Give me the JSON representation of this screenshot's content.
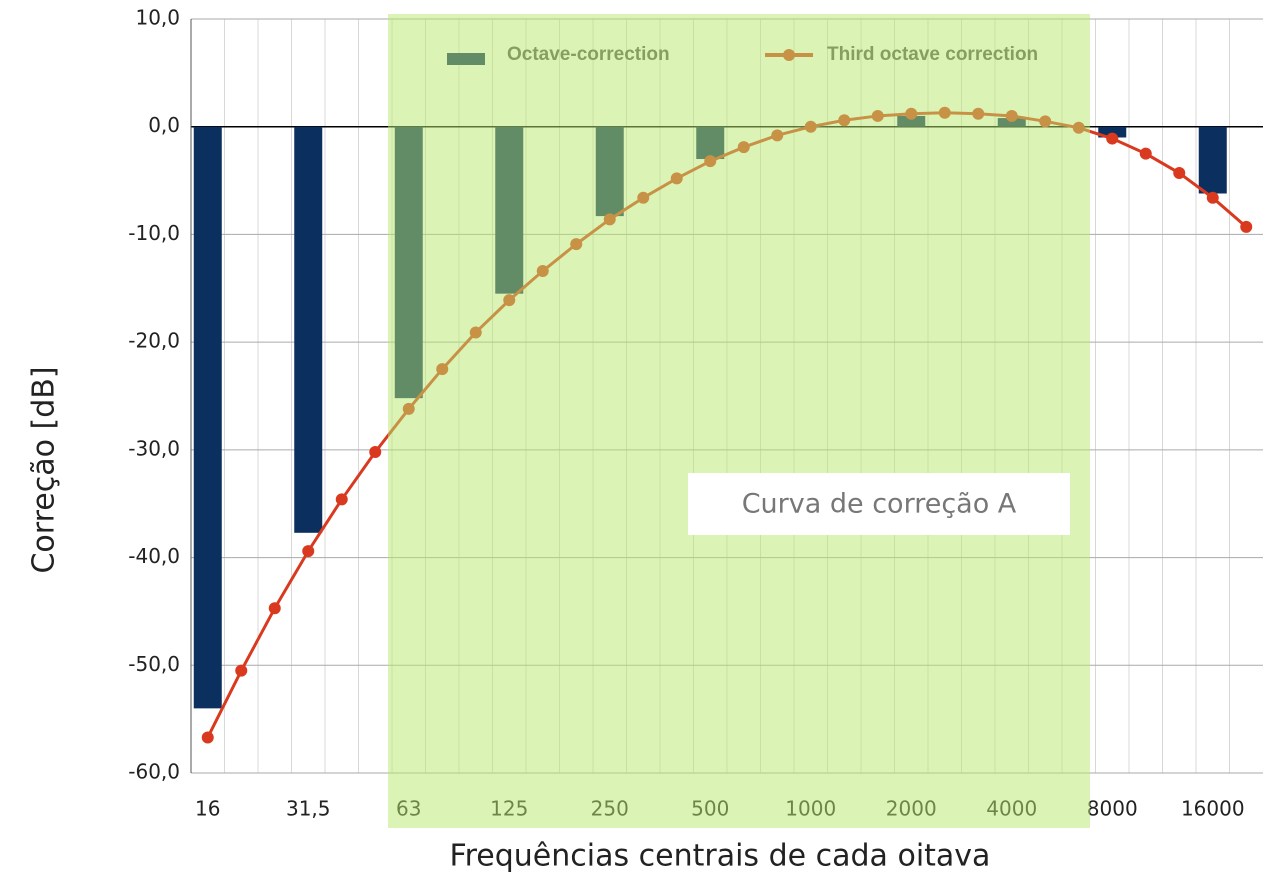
{
  "chart_data": {
    "type": "bar_line",
    "y_axis_label": "Correção [dB]",
    "x_axis_label": "Frequências centrais de cada oitava",
    "annotation": "Curva de correção A",
    "categories": [
      "16",
      null,
      null,
      "31,5",
      null,
      null,
      "63",
      null,
      null,
      "125",
      null,
      null,
      "250",
      null,
      null,
      "500",
      null,
      null,
      "1000",
      null,
      null,
      "2000",
      null,
      null,
      "4000",
      null,
      null,
      "8000",
      null,
      null,
      "16000",
      null
    ],
    "ylim": [
      -60,
      10
    ],
    "yticks": [
      {
        "value": -60,
        "label": "-60,0"
      },
      {
        "value": -50,
        "label": "-50,0"
      },
      {
        "value": -40,
        "label": "-40,0"
      },
      {
        "value": -30,
        "label": "-30,0"
      },
      {
        "value": -20,
        "label": "-20,0"
      },
      {
        "value": -10,
        "label": "-10,0"
      },
      {
        "value": 0,
        "label": "0,0"
      },
      {
        "value": 10,
        "label": "10,0"
      }
    ],
    "grid": true,
    "series": [
      {
        "name": "Octave-correction",
        "kind": "bar",
        "color": "#0b2f5e",
        "values": [
          -54,
          null,
          null,
          -37.7,
          null,
          null,
          -25.2,
          null,
          null,
          -15.5,
          null,
          null,
          -8.3,
          null,
          null,
          -3,
          null,
          null,
          0,
          null,
          null,
          1,
          null,
          null,
          0.8,
          null,
          null,
          -1,
          null,
          null,
          -6.2,
          null
        ]
      },
      {
        "name": "Third octave correction",
        "kind": "line",
        "color": "#d93a1f",
        "values": [
          -56.7,
          -50.5,
          -44.7,
          -39.4,
          -34.6,
          -30.2,
          -26.2,
          -22.5,
          -19.1,
          -16.1,
          -13.4,
          -10.9,
          -8.6,
          -6.6,
          -4.8,
          -3.2,
          -1.9,
          -0.8,
          0,
          0.6,
          1.0,
          1.2,
          1.3,
          1.2,
          1.0,
          0.5,
          -0.1,
          -1.1,
          -2.5,
          -4.3,
          -6.6,
          -9.3
        ]
      }
    ]
  }
}
